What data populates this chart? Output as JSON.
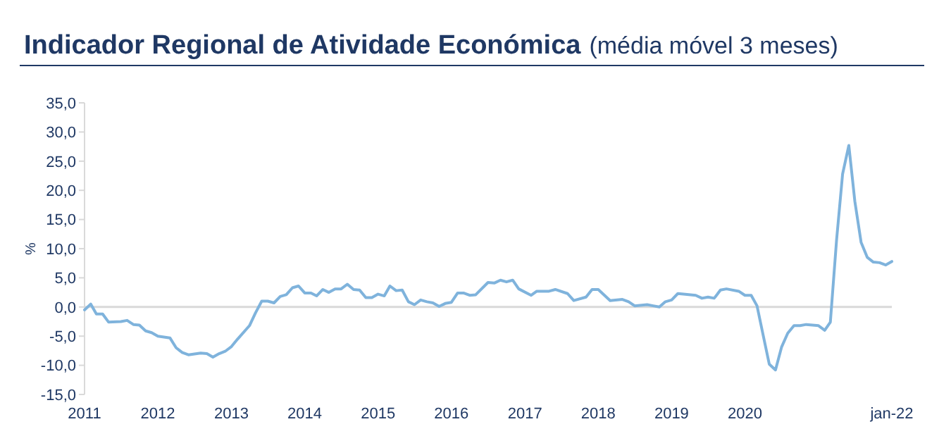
{
  "chart_data": {
    "type": "line",
    "title": "Indicador Regional de Atividade Económica",
    "subtitle": "(média móvel 3 meses)",
    "ylabel": "%",
    "x": [
      "2011-01",
      "2011-02",
      "2011-03",
      "2011-04",
      "2011-05",
      "2011-07",
      "2011-08",
      "2011-09",
      "2011-10",
      "2011-11",
      "2011-12",
      "2012-01",
      "2012-03",
      "2012-04",
      "2012-05",
      "2012-06",
      "2012-08",
      "2012-09",
      "2012-10",
      "2012-11",
      "2012-12",
      "2013-01",
      "2013-02",
      "2013-04",
      "2013-05",
      "2013-06",
      "2013-07",
      "2013-08",
      "2013-09",
      "2013-10",
      "2013-11",
      "2013-12",
      "2014-01",
      "2014-02",
      "2014-03",
      "2014-04",
      "2014-05",
      "2014-06",
      "2014-07",
      "2014-08",
      "2014-09",
      "2014-10",
      "2014-11",
      "2014-12",
      "2015-01",
      "2015-02",
      "2015-03",
      "2015-04",
      "2015-05",
      "2015-06",
      "2015-07",
      "2015-08",
      "2015-09",
      "2015-10",
      "2015-11",
      "2015-12",
      "2016-01",
      "2016-02",
      "2016-03",
      "2016-04",
      "2016-05",
      "2016-07",
      "2016-08",
      "2016-09",
      "2016-10",
      "2016-11",
      "2016-12",
      "2017-02",
      "2017-03",
      "2017-05",
      "2017-06",
      "2017-08",
      "2017-09",
      "2017-11",
      "2017-12",
      "2018-01",
      "2018-03",
      "2018-05",
      "2018-06",
      "2018-07",
      "2018-09",
      "2018-10",
      "2018-11",
      "2018-12",
      "2019-01",
      "2019-02",
      "2019-03",
      "2019-05",
      "2019-06",
      "2019-07",
      "2019-08",
      "2019-09",
      "2019-10",
      "2019-12",
      "2020-01",
      "2020-02",
      "2020-03",
      "2020-04",
      "2020-05",
      "2020-06",
      "2020-07",
      "2020-08",
      "2020-09",
      "2020-10",
      "2020-11",
      "2021-01",
      "2021-02",
      "2021-03",
      "2021-04",
      "2021-05",
      "2021-06",
      "2021-07",
      "2021-08",
      "2021-09",
      "2021-10",
      "2021-11",
      "2021-12",
      "2022-01"
    ],
    "series": [
      {
        "color": "#7fb3dc",
        "values": [
          -0.5,
          0.5,
          -1.2,
          -1.2,
          -2.6,
          -2.5,
          -2.3,
          -3.0,
          -3.1,
          -4.1,
          -4.4,
          -5.0,
          -5.3,
          -7.0,
          -7.8,
          -8.2,
          -7.9,
          -8.0,
          -8.6,
          -8.0,
          -7.6,
          -6.8,
          -5.5,
          -3.2,
          -1.0,
          1.0,
          1.0,
          0.7,
          1.8,
          2.1,
          3.3,
          3.6,
          2.4,
          2.4,
          1.9,
          3.0,
          2.5,
          3.1,
          3.1,
          3.9,
          3.0,
          2.9,
          1.6,
          1.6,
          2.2,
          1.9,
          3.6,
          2.8,
          2.9,
          0.9,
          0.4,
          1.2,
          0.9,
          0.7,
          0.1,
          0.6,
          0.8,
          2.4,
          2.4,
          2.0,
          2.1,
          4.2,
          4.1,
          4.6,
          4.3,
          4.6,
          3.1,
          2.0,
          2.7,
          2.7,
          3.0,
          2.3,
          1.1,
          1.7,
          3.0,
          3.0,
          1.1,
          1.3,
          0.9,
          0.2,
          0.4,
          0.2,
          0.0,
          0.9,
          1.2,
          2.3,
          2.2,
          2.0,
          1.5,
          1.7,
          1.5,
          2.9,
          3.1,
          2.7,
          2.0,
          2.0,
          0.2,
          -4.9,
          -9.8,
          -10.8,
          -6.9,
          -4.5,
          -3.2,
          -3.2,
          -3.0,
          -3.2,
          -4.0,
          -2.6,
          11.5,
          22.8,
          27.7,
          18.1,
          11.1,
          8.5,
          7.7,
          7.6,
          7.2,
          7.8
        ]
      }
    ],
    "xlim": [
      "2011-01",
      "2022-01"
    ],
    "xticks": [
      {
        "value": "2011-01",
        "label": "2011"
      },
      {
        "value": "2012-01",
        "label": "2012"
      },
      {
        "value": "2013-01",
        "label": "2013"
      },
      {
        "value": "2014-01",
        "label": "2014"
      },
      {
        "value": "2015-01",
        "label": "2015"
      },
      {
        "value": "2016-01",
        "label": "2016"
      },
      {
        "value": "2017-01",
        "label": "2017"
      },
      {
        "value": "2018-01",
        "label": "2018"
      },
      {
        "value": "2019-01",
        "label": "2019"
      },
      {
        "value": "2020-01",
        "label": "2020"
      },
      {
        "value": "2022-01",
        "label": "jan-22"
      }
    ],
    "ylim": [
      -15,
      35
    ],
    "yticks": [
      {
        "value": -15,
        "label": "-15,0"
      },
      {
        "value": -10,
        "label": "-10,0"
      },
      {
        "value": -5,
        "label": "-5,0"
      },
      {
        "value": 0,
        "label": "0,0"
      },
      {
        "value": 5,
        "label": "5,0"
      },
      {
        "value": 10,
        "label": "10,0"
      },
      {
        "value": 15,
        "label": "15,0"
      },
      {
        "value": 20,
        "label": "20,0"
      },
      {
        "value": 25,
        "label": "25,0"
      },
      {
        "value": 30,
        "label": "30,0"
      },
      {
        "value": 35,
        "label": "35,0"
      }
    ],
    "ref_lines": [
      {
        "axis": "y",
        "value": 0,
        "color": "#d9d9d9"
      }
    ],
    "grid": false,
    "marker": "none",
    "line_style": "solid"
  }
}
